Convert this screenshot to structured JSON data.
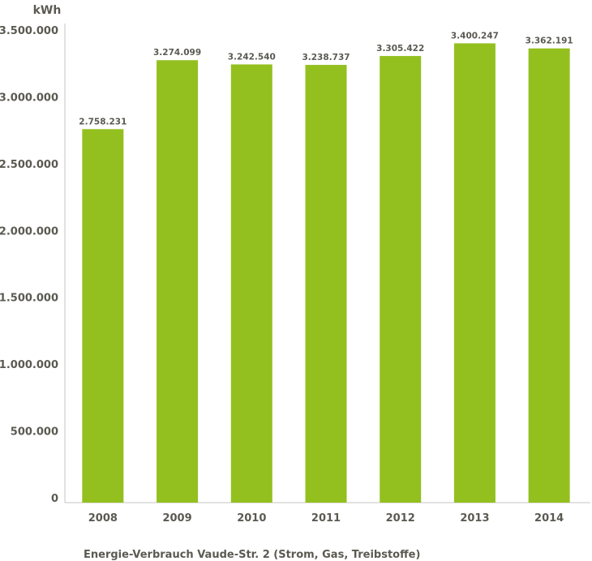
{
  "chart_data": {
    "type": "bar",
    "title": "Energie-Verbrauch Vaude-Str. 2 (Strom, Gas, Treibstoffe)",
    "xlabel": "",
    "ylabel": "kWh",
    "categories": [
      "2008",
      "2009",
      "2010",
      "2011",
      "2012",
      "2013",
      "2014"
    ],
    "values": [
      2758231,
      3274099,
      3242540,
      3238737,
      3305422,
      3400247,
      3362191
    ],
    "value_labels": [
      "2.758.231",
      "3.274.099",
      "3.242.540",
      "3.238.737",
      "3.305.422",
      "3.400.247",
      "3.362.191"
    ],
    "ylim": [
      0,
      3500000
    ],
    "yticks": [
      0,
      500000,
      1000000,
      1500000,
      2000000,
      2500000,
      3000000,
      3500000
    ],
    "ytick_labels": [
      "0",
      "500.000",
      "1.000.000",
      "1.500.000",
      "2.000.000",
      "2.500.000",
      "3.000.000",
      "3.500.000"
    ],
    "grid": false,
    "legend": "none",
    "colors": {
      "bar": "#93c01f",
      "axis": "#d9d9d6",
      "text": "#5b5a52"
    }
  }
}
